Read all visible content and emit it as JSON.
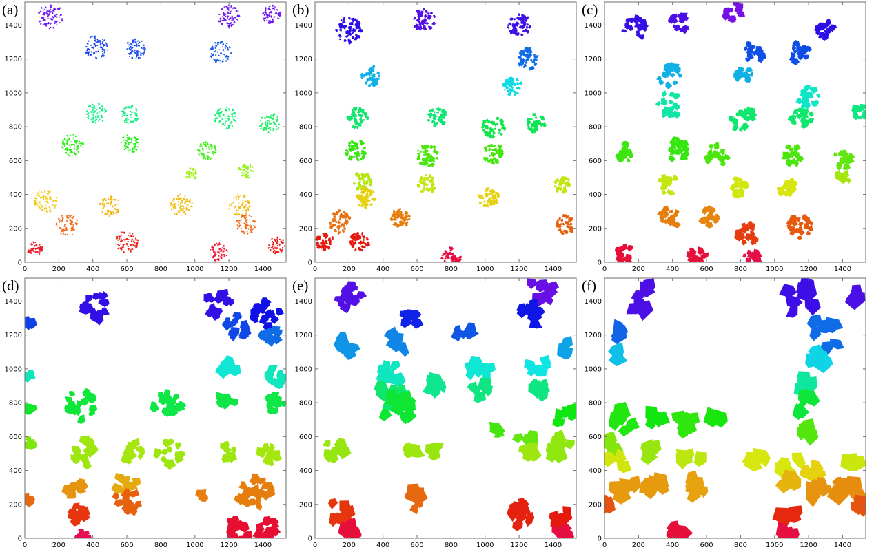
{
  "figure": {
    "panels": [
      {
        "label": "(a)"
      },
      {
        "label": "(b)"
      },
      {
        "label": "(c)"
      },
      {
        "label": "(d)"
      },
      {
        "label": "(e)"
      },
      {
        "label": "(f)"
      }
    ]
  },
  "chart_data": [
    {
      "type": "scatter",
      "panel": "(a)",
      "grain": "fine",
      "xlim": [
        0,
        1536
      ],
      "ylim": [
        0,
        1536
      ],
      "xticks": [
        0,
        200,
        400,
        600,
        800,
        1000,
        1200,
        1400
      ],
      "yticks": [
        0,
        200,
        400,
        600,
        800,
        1000,
        1200,
        1400
      ],
      "clusters": [
        [
          150,
          1450,
          150
        ],
        [
          1200,
          1450,
          130
        ],
        [
          1450,
          1460,
          110
        ],
        [
          420,
          1270,
          140
        ],
        [
          650,
          1260,
          120
        ],
        [
          1150,
          1240,
          130
        ],
        [
          420,
          880,
          120
        ],
        [
          620,
          870,
          110
        ],
        [
          1180,
          850,
          130
        ],
        [
          1440,
          820,
          120
        ],
        [
          280,
          690,
          130
        ],
        [
          620,
          700,
          110
        ],
        [
          1070,
          660,
          110
        ],
        [
          1300,
          540,
          90
        ],
        [
          980,
          520,
          70
        ],
        [
          120,
          360,
          140
        ],
        [
          500,
          330,
          120
        ],
        [
          920,
          340,
          130
        ],
        [
          1260,
          340,
          130
        ],
        [
          250,
          220,
          130
        ],
        [
          1300,
          220,
          120
        ],
        [
          600,
          120,
          130
        ],
        [
          1140,
          60,
          110
        ],
        [
          1480,
          100,
          100
        ],
        [
          60,
          80,
          90
        ]
      ]
    },
    {
      "type": "scatter",
      "panel": "(b)",
      "grain": "small",
      "xlim": [
        0,
        1536
      ],
      "ylim": [
        0,
        1536
      ],
      "xticks": [
        0,
        200,
        400,
        600,
        800,
        1000,
        1200,
        1400
      ],
      "yticks": [
        0,
        200,
        400,
        600,
        800,
        1000,
        1200,
        1400
      ],
      "clusters": [
        [
          200,
          1370,
          150
        ],
        [
          640,
          1430,
          130
        ],
        [
          1200,
          1400,
          130
        ],
        [
          330,
          1100,
          120
        ],
        [
          1250,
          1200,
          130
        ],
        [
          1160,
          1040,
          110
        ],
        [
          250,
          850,
          120
        ],
        [
          720,
          860,
          110
        ],
        [
          1050,
          800,
          130
        ],
        [
          1300,
          820,
          110
        ],
        [
          240,
          660,
          120
        ],
        [
          660,
          630,
          130
        ],
        [
          1050,
          640,
          120
        ],
        [
          1450,
          460,
          100
        ],
        [
          280,
          480,
          110
        ],
        [
          660,
          460,
          110
        ],
        [
          300,
          380,
          120
        ],
        [
          1020,
          380,
          120
        ],
        [
          140,
          240,
          130
        ],
        [
          500,
          260,
          110
        ],
        [
          1470,
          220,
          110
        ],
        [
          60,
          120,
          100
        ],
        [
          260,
          120,
          110
        ],
        [
          800,
          30,
          110
        ]
      ]
    },
    {
      "type": "scatter",
      "panel": "(c)",
      "grain": "medium",
      "xlim": [
        0,
        1536
      ],
      "ylim": [
        0,
        1536
      ],
      "xticks": [
        0,
        200,
        400,
        600,
        800,
        1000,
        1200,
        1400
      ],
      "yticks": [
        0,
        200,
        400,
        600,
        800,
        1000,
        1200,
        1400
      ],
      "clusters": [
        [
          180,
          1390,
          140
        ],
        [
          440,
          1420,
          120
        ],
        [
          760,
          1480,
          110
        ],
        [
          1300,
          1370,
          110
        ],
        [
          880,
          1240,
          120
        ],
        [
          1150,
          1240,
          120
        ],
        [
          380,
          1100,
          130
        ],
        [
          820,
          1100,
          100
        ],
        [
          1200,
          980,
          130
        ],
        [
          380,
          930,
          150
        ],
        [
          820,
          850,
          150
        ],
        [
          1160,
          850,
          120
        ],
        [
          1500,
          880,
          80
        ],
        [
          120,
          650,
          110
        ],
        [
          420,
          660,
          140
        ],
        [
          660,
          630,
          130
        ],
        [
          1100,
          630,
          110
        ],
        [
          1400,
          600,
          110
        ],
        [
          1400,
          500,
          90
        ],
        [
          380,
          460,
          120
        ],
        [
          790,
          440,
          110
        ],
        [
          1080,
          430,
          110
        ],
        [
          380,
          260,
          120
        ],
        [
          620,
          270,
          110
        ],
        [
          840,
          170,
          130
        ],
        [
          1150,
          210,
          140
        ],
        [
          120,
          40,
          110
        ],
        [
          540,
          40,
          110
        ],
        [
          860,
          20,
          100
        ]
      ]
    },
    {
      "type": "scatter",
      "panel": "(d)",
      "grain": "coarse",
      "xlim": [
        0,
        1536
      ],
      "ylim": [
        0,
        1536
      ],
      "xticks": [
        0,
        200,
        400,
        600,
        800,
        1000,
        1200,
        1400
      ],
      "yticks": [
        0,
        200,
        400,
        600,
        800,
        1000,
        1200,
        1400
      ],
      "clusters": [
        [
          420,
          1380,
          170
        ],
        [
          1130,
          1380,
          160
        ],
        [
          1420,
          1330,
          160
        ],
        [
          20,
          1260,
          60
        ],
        [
          1250,
          1250,
          140
        ],
        [
          1440,
          1200,
          120
        ],
        [
          1200,
          1000,
          110
        ],
        [
          1480,
          960,
          110
        ],
        [
          20,
          960,
          60
        ],
        [
          330,
          780,
          190
        ],
        [
          840,
          800,
          170
        ],
        [
          1180,
          800,
          100
        ],
        [
          1480,
          800,
          110
        ],
        [
          20,
          760,
          50
        ],
        [
          20,
          560,
          60
        ],
        [
          360,
          510,
          170
        ],
        [
          640,
          500,
          120
        ],
        [
          850,
          510,
          170
        ],
        [
          1200,
          510,
          110
        ],
        [
          1450,
          500,
          120
        ],
        [
          300,
          290,
          120
        ],
        [
          600,
          320,
          120
        ],
        [
          1350,
          260,
          200
        ],
        [
          1050,
          260,
          60
        ],
        [
          300,
          160,
          120
        ],
        [
          600,
          220,
          140
        ],
        [
          1260,
          50,
          140
        ],
        [
          1430,
          50,
          130
        ],
        [
          20,
          230,
          50
        ],
        [
          340,
          10,
          80
        ]
      ]
    },
    {
      "type": "scatter",
      "panel": "(e)",
      "grain": "large",
      "xlim": [
        0,
        1536
      ],
      "ylim": [
        0,
        1536
      ],
      "xticks": [
        0,
        200,
        400,
        600,
        800,
        1000,
        1200,
        1400
      ],
      "yticks": [
        0,
        200,
        400,
        600,
        800,
        1000,
        1200,
        1400
      ],
      "clusters": [
        [
          200,
          1430,
          150
        ],
        [
          1330,
          1460,
          140
        ],
        [
          1270,
          1320,
          130
        ],
        [
          580,
          1300,
          110
        ],
        [
          880,
          1230,
          110
        ],
        [
          480,
          1160,
          110
        ],
        [
          190,
          1140,
          110
        ],
        [
          1460,
          1120,
          90
        ],
        [
          430,
          970,
          140
        ],
        [
          970,
          1000,
          140
        ],
        [
          1300,
          1020,
          120
        ],
        [
          450,
          850,
          150
        ],
        [
          700,
          900,
          100
        ],
        [
          970,
          880,
          110
        ],
        [
          1320,
          880,
          110
        ],
        [
          500,
          770,
          200
        ],
        [
          1460,
          720,
          110
        ],
        [
          1060,
          640,
          70
        ],
        [
          1250,
          600,
          110
        ],
        [
          1440,
          530,
          140
        ],
        [
          120,
          520,
          120
        ],
        [
          570,
          510,
          80
        ],
        [
          700,
          520,
          60
        ],
        [
          1260,
          510,
          90
        ],
        [
          140,
          160,
          140
        ],
        [
          580,
          230,
          120
        ],
        [
          1200,
          130,
          170
        ],
        [
          1460,
          120,
          110
        ],
        [
          1460,
          30,
          100
        ],
        [
          200,
          40,
          110
        ]
      ]
    },
    {
      "type": "scatter",
      "panel": "(f)",
      "grain": "huge",
      "xlim": [
        0,
        1536
      ],
      "ylim": [
        0,
        1536
      ],
      "xticks": [
        0,
        200,
        400,
        600,
        800,
        1000,
        1200,
        1400
      ],
      "yticks": [
        0,
        200,
        400,
        600,
        800,
        1000,
        1200,
        1400
      ],
      "clusters": [
        [
          230,
          1420,
          160
        ],
        [
          1150,
          1400,
          200
        ],
        [
          1480,
          1420,
          60
        ],
        [
          80,
          1210,
          60
        ],
        [
          1280,
          1200,
          200
        ],
        [
          1250,
          1050,
          140
        ],
        [
          80,
          1080,
          60
        ],
        [
          1180,
          920,
          110
        ],
        [
          1190,
          780,
          130
        ],
        [
          110,
          690,
          120
        ],
        [
          300,
          710,
          100
        ],
        [
          480,
          670,
          130
        ],
        [
          640,
          700,
          130
        ],
        [
          1200,
          620,
          110
        ],
        [
          70,
          550,
          110
        ],
        [
          260,
          520,
          80
        ],
        [
          520,
          470,
          120
        ],
        [
          70,
          440,
          110
        ],
        [
          900,
          430,
          140
        ],
        [
          1100,
          430,
          130
        ],
        [
          1230,
          380,
          110
        ],
        [
          1470,
          450,
          80
        ],
        [
          120,
          300,
          140
        ],
        [
          320,
          300,
          150
        ],
        [
          560,
          310,
          150
        ],
        [
          1100,
          340,
          90
        ],
        [
          1230,
          290,
          130
        ],
        [
          1420,
          280,
          160
        ],
        [
          1100,
          140,
          110
        ],
        [
          420,
          40,
          90
        ],
        [
          1080,
          30,
          70
        ],
        [
          1500,
          200,
          60
        ],
        [
          10,
          200,
          60
        ]
      ]
    }
  ]
}
